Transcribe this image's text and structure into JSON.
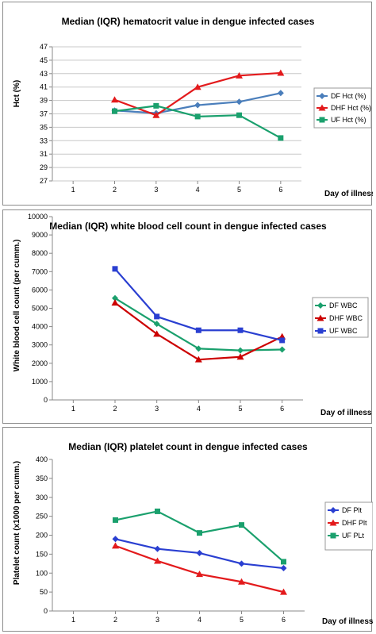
{
  "chart_data": [
    {
      "type": "line",
      "title": "Median (IQR) hematocrit value in dengue infected cases",
      "ylabel": "Hct (%)",
      "xlabel": "Day of illness",
      "x_ticks": [
        "1",
        "2",
        "3",
        "4",
        "5",
        "6"
      ],
      "y_ticks": [
        "27",
        "29",
        "31",
        "33",
        "35",
        "37",
        "39",
        "41",
        "43",
        "45",
        "47"
      ],
      "ylim": [
        27,
        47
      ],
      "xlim": [
        1,
        6
      ],
      "grid": "horizontal",
      "legend_position": "right",
      "series": [
        {
          "name": "DF Hct (%)",
          "color": "#4a7ebb",
          "marker": "diamond",
          "x": [
            2,
            3,
            4,
            5,
            6
          ],
          "values": [
            37.5,
            37.1,
            38.3,
            38.8,
            40.1
          ]
        },
        {
          "name": "DHF Hct (%)",
          "color": "#e31a1c",
          "marker": "triangle",
          "x": [
            2,
            3,
            4,
            5,
            6
          ],
          "values": [
            39.1,
            36.8,
            41.0,
            42.7,
            43.1
          ]
        },
        {
          "name": "UF Hct (%)",
          "color": "#1aa06d",
          "marker": "square",
          "x": [
            2,
            3,
            4,
            5,
            6
          ],
          "values": [
            37.4,
            38.2,
            36.6,
            36.8,
            33.4
          ]
        }
      ]
    },
    {
      "type": "line",
      "title": "Median (IQR) white blood cell count in dengue infected cases",
      "ylabel": "White blood cell count (per cumm.)",
      "xlabel": "Day of illness",
      "x_ticks": [
        "1",
        "2",
        "3",
        "4",
        "5",
        "6"
      ],
      "y_ticks": [
        "0",
        "1000",
        "2000",
        "3000",
        "4000",
        "5000",
        "6000",
        "7000",
        "8000",
        "9000",
        "10000"
      ],
      "ylim": [
        0,
        10000
      ],
      "xlim": [
        1,
        6
      ],
      "grid": "none",
      "legend_position": "right",
      "series": [
        {
          "name": "DF WBC",
          "color": "#1aa06d",
          "marker": "diamond",
          "x": [
            2,
            3,
            4,
            5,
            6
          ],
          "values": [
            5550,
            4150,
            2800,
            2700,
            2750
          ]
        },
        {
          "name": "DHF WBC",
          "color": "#cc0000",
          "marker": "triangle",
          "x": [
            2,
            3,
            4,
            5,
            6
          ],
          "values": [
            5300,
            3600,
            2200,
            2350,
            3450
          ]
        },
        {
          "name": "UF WBC",
          "color": "#2a3fd1",
          "marker": "square",
          "x": [
            2,
            3,
            4,
            5,
            6
          ],
          "values": [
            7150,
            4550,
            3800,
            3800,
            3250
          ]
        }
      ]
    },
    {
      "type": "line",
      "title": "Median (IQR) platelet count in dengue infected cases",
      "ylabel": "Platelet count (x1000 per cumm.)",
      "xlabel": "Day of illness",
      "x_ticks": [
        "1",
        "2",
        "3",
        "4",
        "5",
        "6"
      ],
      "y_ticks": [
        "0",
        "50",
        "100",
        "150",
        "200",
        "250",
        "300",
        "350",
        "400"
      ],
      "ylim": [
        0,
        400
      ],
      "xlim": [
        1,
        6
      ],
      "grid": "none",
      "legend_position": "right",
      "series": [
        {
          "name": "DF Plt",
          "color": "#2a3fd1",
          "marker": "diamond",
          "x": [
            2,
            3,
            4,
            5,
            6
          ],
          "values": [
            190,
            164,
            153,
            125,
            113
          ]
        },
        {
          "name": "DHF Plt",
          "color": "#e31a1c",
          "marker": "triangle",
          "x": [
            2,
            3,
            4,
            5,
            6
          ],
          "values": [
            172,
            132,
            97,
            77,
            50
          ]
        },
        {
          "name": "UF PLt",
          "color": "#1aa06d",
          "marker": "square",
          "x": [
            2,
            3,
            4,
            5,
            6
          ],
          "values": [
            240,
            263,
            206,
            227,
            130
          ]
        }
      ]
    }
  ]
}
